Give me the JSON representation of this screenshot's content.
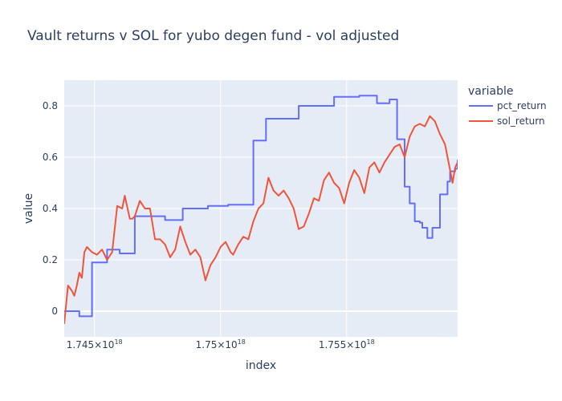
{
  "chart_data": {
    "type": "line",
    "title": "Vault returns v SOL for yubo degen fund - vol adjusted",
    "xlabel": "index",
    "ylabel": "value",
    "xlim": [
      1.7438e+18,
      1.7594e+18
    ],
    "ylim": [
      -0.1,
      0.9
    ],
    "x_ticks": [
      {
        "value": 1.745e+18,
        "label_base": "1.745×10",
        "label_exp": "18"
      },
      {
        "value": 1.75e+18,
        "label_base": "1.75×10",
        "label_exp": "18"
      },
      {
        "value": 1.755e+18,
        "label_base": "1.755×10",
        "label_exp": "18"
      }
    ],
    "y_ticks": [
      {
        "value": 0,
        "label": "0"
      },
      {
        "value": 0.2,
        "label": "0.2"
      },
      {
        "value": 0.4,
        "label": "0.4"
      },
      {
        "value": 0.6,
        "label": "0.6"
      },
      {
        "value": 0.8,
        "label": "0.8"
      }
    ],
    "legend": {
      "title": "variable",
      "placement": "top-right"
    },
    "series": [
      {
        "name": "pct_return",
        "color": "#636efa",
        "shape": "step",
        "x": [
          1.7438e+18,
          1.7444e+18,
          1.7449e+18,
          1.7455e+18,
          1.746e+18,
          1.7466e+18,
          1.7478e+18,
          1.7485e+18,
          1.7495e+18,
          1.7503e+18,
          1.7513e+18,
          1.7518e+18,
          1.7531e+18,
          1.7545e+18,
          1.7555e+18,
          1.7562e+18,
          1.7567e+18,
          1.757e+18,
          1.7573e+18,
          1.7575e+18,
          1.7577e+18,
          1.7579e+18,
          1.758e+18,
          1.7582e+18,
          1.7584e+18,
          1.7587e+18,
          1.759e+18,
          1.7591e+18,
          1.7593e+18,
          1.7594e+18
        ],
        "values": [
          0.0,
          -0.02,
          0.19,
          0.24,
          0.225,
          0.37,
          0.355,
          0.4,
          0.41,
          0.415,
          0.665,
          0.75,
          0.8,
          0.835,
          0.84,
          0.81,
          0.825,
          0.67,
          0.485,
          0.42,
          0.35,
          0.345,
          0.325,
          0.285,
          0.325,
          0.455,
          0.505,
          0.545,
          0.555,
          0.59
        ]
      },
      {
        "name": "sol_return",
        "color": "#ef553b",
        "shape": "linear",
        "x": [
          1.7438e+18,
          1.74395e+18,
          1.7441e+18,
          1.7442e+18,
          1.7443e+18,
          1.7444e+18,
          1.7445e+18,
          1.7446e+18,
          1.7447e+18,
          1.7448e+18,
          1.7449e+18,
          1.7451e+18,
          1.7453e+18,
          1.7455e+18,
          1.7457e+18,
          1.7459e+18,
          1.7461e+18,
          1.7462e+18,
          1.7464e+18,
          1.7465e+18,
          1.7466e+18,
          1.7468e+18,
          1.747e+18,
          1.7472e+18,
          1.7474e+18,
          1.7476e+18,
          1.7478e+18,
          1.748e+18,
          1.7482e+18,
          1.7484e+18,
          1.7486e+18,
          1.7488e+18,
          1.749e+18,
          1.7492e+18,
          1.7494e+18,
          1.7496e+18,
          1.7498e+18,
          1.75e+18,
          1.7502e+18,
          1.7504e+18,
          1.7505e+18,
          1.7507e+18,
          1.7509e+18,
          1.7511e+18,
          1.7513e+18,
          1.7515e+18,
          1.7517e+18,
          1.7519e+18,
          1.7521e+18,
          1.7523e+18,
          1.7525e+18,
          1.7527e+18,
          1.7529e+18,
          1.7531e+18,
          1.7533e+18,
          1.7535e+18,
          1.7537e+18,
          1.7539e+18,
          1.7541e+18,
          1.7543e+18,
          1.7545e+18,
          1.7547e+18,
          1.7549e+18,
          1.7551e+18,
          1.7553e+18,
          1.7555e+18,
          1.7557e+18,
          1.7559e+18,
          1.7561e+18,
          1.7563e+18,
          1.7565e+18,
          1.7567e+18,
          1.7569e+18,
          1.7571e+18,
          1.7573e+18,
          1.7575e+18,
          1.7577e+18,
          1.7579e+18,
          1.7581e+18,
          1.7583e+18,
          1.7585e+18,
          1.7587e+18,
          1.7589e+18,
          1.7591e+18,
          1.7592e+18,
          1.7593e+18,
          1.7594e+18
        ],
        "values": [
          -0.05,
          0.1,
          0.08,
          0.06,
          0.1,
          0.15,
          0.13,
          0.23,
          0.25,
          0.24,
          0.23,
          0.22,
          0.24,
          0.2,
          0.23,
          0.41,
          0.4,
          0.45,
          0.36,
          0.36,
          0.37,
          0.43,
          0.4,
          0.4,
          0.28,
          0.28,
          0.26,
          0.21,
          0.24,
          0.33,
          0.27,
          0.22,
          0.24,
          0.21,
          0.12,
          0.18,
          0.21,
          0.25,
          0.27,
          0.23,
          0.22,
          0.26,
          0.29,
          0.28,
          0.35,
          0.4,
          0.42,
          0.52,
          0.47,
          0.45,
          0.47,
          0.44,
          0.4,
          0.32,
          0.33,
          0.38,
          0.44,
          0.43,
          0.51,
          0.54,
          0.5,
          0.48,
          0.42,
          0.5,
          0.55,
          0.52,
          0.46,
          0.56,
          0.58,
          0.54,
          0.58,
          0.61,
          0.64,
          0.65,
          0.6,
          0.68,
          0.72,
          0.73,
          0.72,
          0.76,
          0.74,
          0.69,
          0.65,
          0.55,
          0.5,
          0.56,
          0.58
        ]
      }
    ]
  }
}
